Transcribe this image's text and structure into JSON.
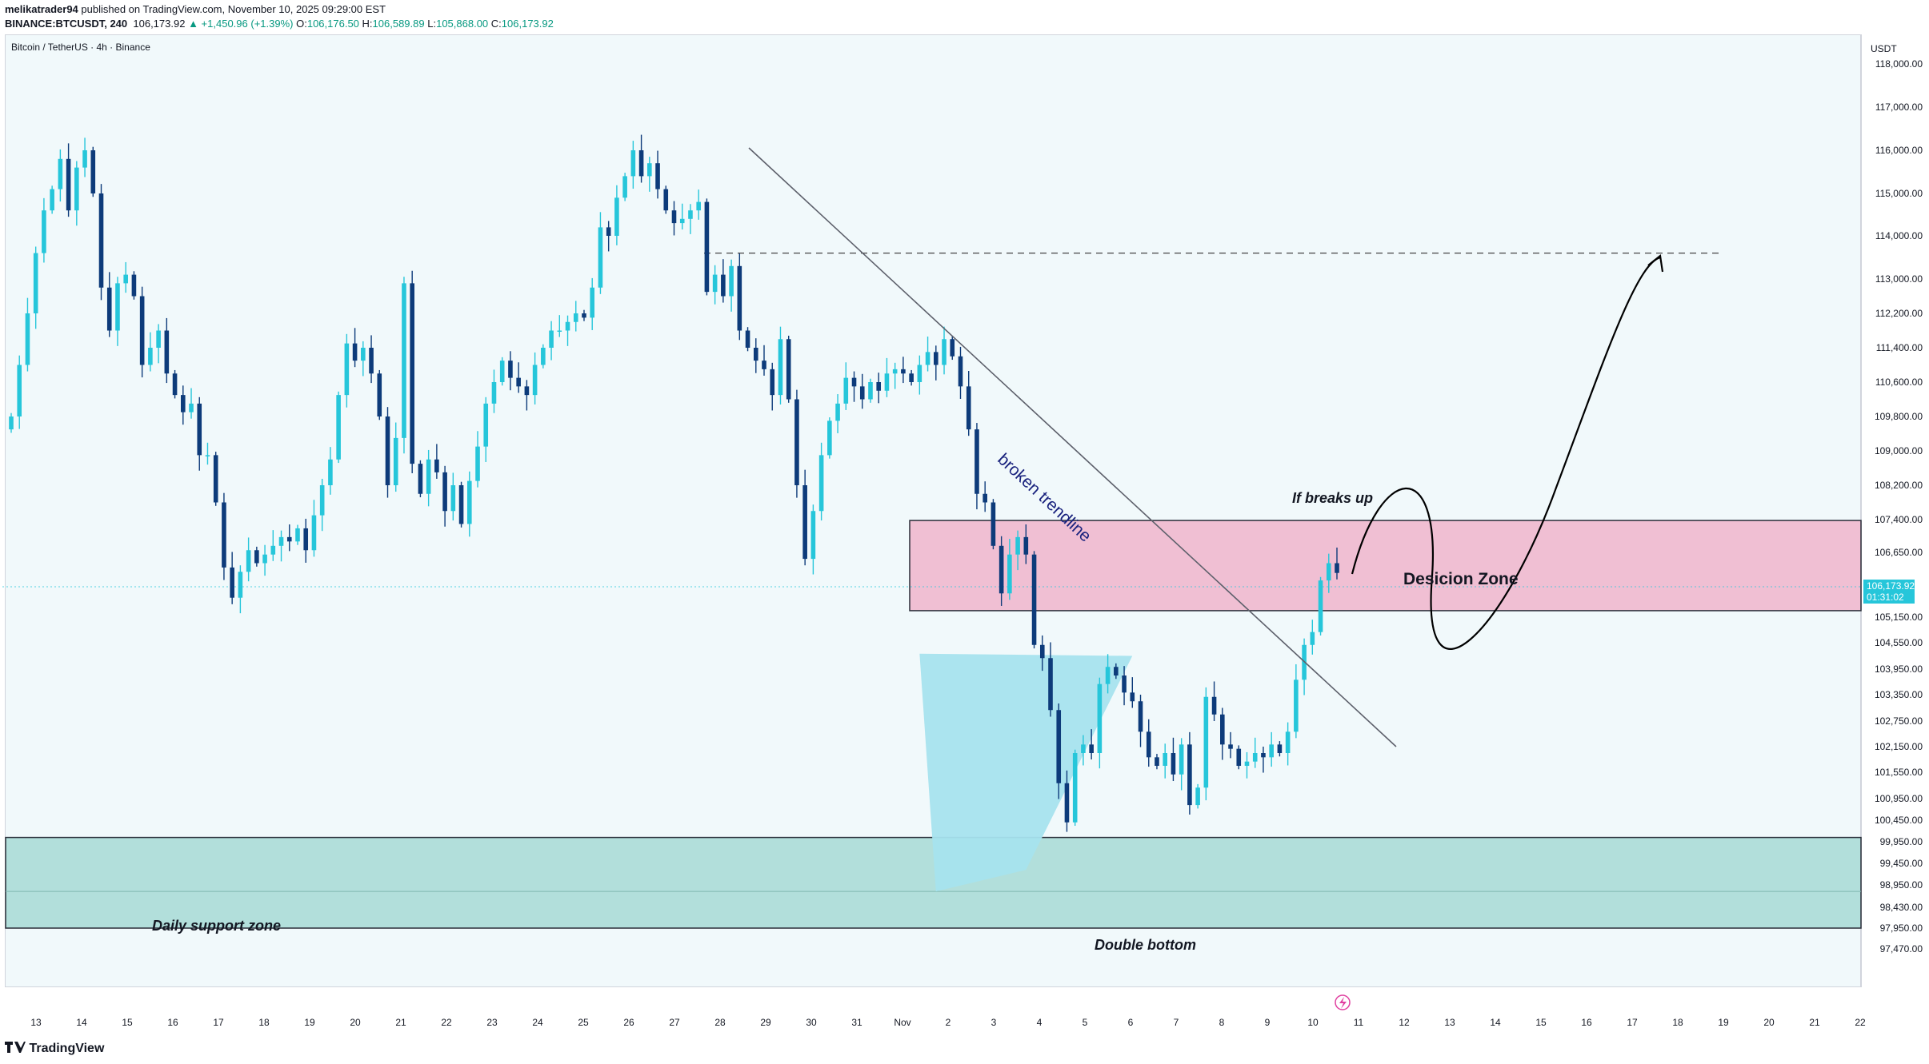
{
  "header": {
    "author": "melikatrader94",
    "published_text": "published on TradingView.com, November 10, 2025 09:29:00 EST",
    "symbol": "BINANCE:BTCUSDT, 240",
    "last": "106,173.92",
    "change": "▲ +1,450.96 (+1.39%)",
    "ohlc": {
      "o_label": "O:",
      "o": "106,176.50",
      "h_label": "H:",
      "h": "106,589.89",
      "l_label": "L:",
      "l": "105,868.00",
      "c_label": "C:",
      "c": "106,173.92"
    }
  },
  "chart": {
    "symbol_label": "Bitcoin / TetherUS · 4h · Binance",
    "unit": "USDT",
    "price_tag": {
      "price": "106,173.92",
      "countdown": "01:31:02"
    },
    "colors": {
      "up": "#26c6da",
      "down": "#0d3b7a",
      "decision_zone": "#f0bfd3",
      "support_zone": "#b2dfdb",
      "triangle": "#a6e3ee",
      "bg": "#f1f9fb"
    },
    "price_ticks": [
      "118,000.00",
      "117,000.00",
      "116,000.00",
      "115,000.00",
      "114,000.00",
      "113,000.00",
      "112,200.00",
      "111,400.00",
      "110,600.00",
      "109,800.00",
      "109,000.00",
      "108,200.00",
      "107,400.00",
      "106,650.00",
      "105,150.00",
      "104,550.00",
      "103,950.00",
      "103,350.00",
      "102,750.00",
      "102,150.00",
      "101,550.00",
      "100,950.00",
      "100,450.00",
      "99,950.00",
      "99,450.00",
      "98,950.00",
      "98,430.00",
      "97,950.00",
      "97,470.00"
    ],
    "time_ticks": [
      "13",
      "14",
      "15",
      "16",
      "17",
      "18",
      "19",
      "20",
      "21",
      "22",
      "23",
      "24",
      "25",
      "26",
      "27",
      "28",
      "29",
      "30",
      "31",
      "Nov",
      "2",
      "3",
      "4",
      "5",
      "6",
      "7",
      "8",
      "9",
      "10",
      "11",
      "12",
      "13",
      "14",
      "15",
      "16",
      "17",
      "18",
      "19",
      "20",
      "21",
      "22"
    ],
    "annotations": {
      "trendline": "broken trendline",
      "decision_zone": "Desicion Zone",
      "if_breaks": "If breaks up",
      "support": "Daily support zone",
      "double_bottom": "Double bottom"
    }
  },
  "chart_data": {
    "type": "candlestick",
    "title": "Bitcoin / TetherUS · 4h · Binance",
    "ylabel": "USDT",
    "ylim": [
      97300,
      118300
    ],
    "x_range": [
      "Oct 13",
      "Nov 22"
    ],
    "closes": [
      109800,
      111000,
      112200,
      113600,
      114600,
      115100,
      115800,
      114600,
      115600,
      116000,
      115000,
      112800,
      111800,
      112900,
      113100,
      112600,
      111000,
      111400,
      111800,
      110800,
      110300,
      109900,
      110100,
      108900,
      108900,
      107800,
      106300,
      105600,
      106200,
      106700,
      106400,
      106600,
      106800,
      107000,
      106900,
      107200,
      106700,
      107500,
      108200,
      108800,
      110300,
      111500,
      111100,
      111400,
      110800,
      109800,
      108200,
      109300,
      112900,
      108700,
      108000,
      108800,
      108500,
      107600,
      108200,
      107300,
      108300,
      109100,
      110100,
      110600,
      111100,
      110700,
      110500,
      110300,
      111000,
      111400,
      111800,
      111800,
      112000,
      112200,
      112100,
      112800,
      114200,
      114000,
      114900,
      115400,
      116000,
      115400,
      115700,
      115100,
      114600,
      114300,
      114400,
      114600,
      114800,
      112700,
      113100,
      112600,
      113300,
      111800,
      111400,
      111100,
      110900,
      110300,
      111600,
      110200,
      108200,
      106500,
      107600,
      108900,
      109700,
      110100,
      110700,
      110500,
      110200,
      110600,
      110400,
      110800,
      110900,
      110800,
      110600,
      111000,
      111300,
      111000,
      111600,
      111200,
      110500,
      109500,
      108000,
      107800,
      106800,
      105700,
      106600,
      107000,
      106600,
      104500,
      104200,
      103000,
      101300,
      100400,
      102000,
      102200,
      102000,
      103600,
      104000,
      103800,
      103400,
      103200,
      102500,
      101900,
      101700,
      102000,
      101500,
      102200,
      100800,
      101200,
      103300,
      102900,
      102200,
      102100,
      101700,
      101800,
      102000,
      101900,
      102200,
      102000,
      102500,
      103700,
      104500,
      104800,
      106000,
      106400,
      106174
    ],
    "support_zone": [
      97950,
      100050
    ],
    "decision_zone": [
      105300,
      107380
    ],
    "target_level": 113600,
    "double_bottom_lows": [
      98800,
      99300
    ]
  }
}
